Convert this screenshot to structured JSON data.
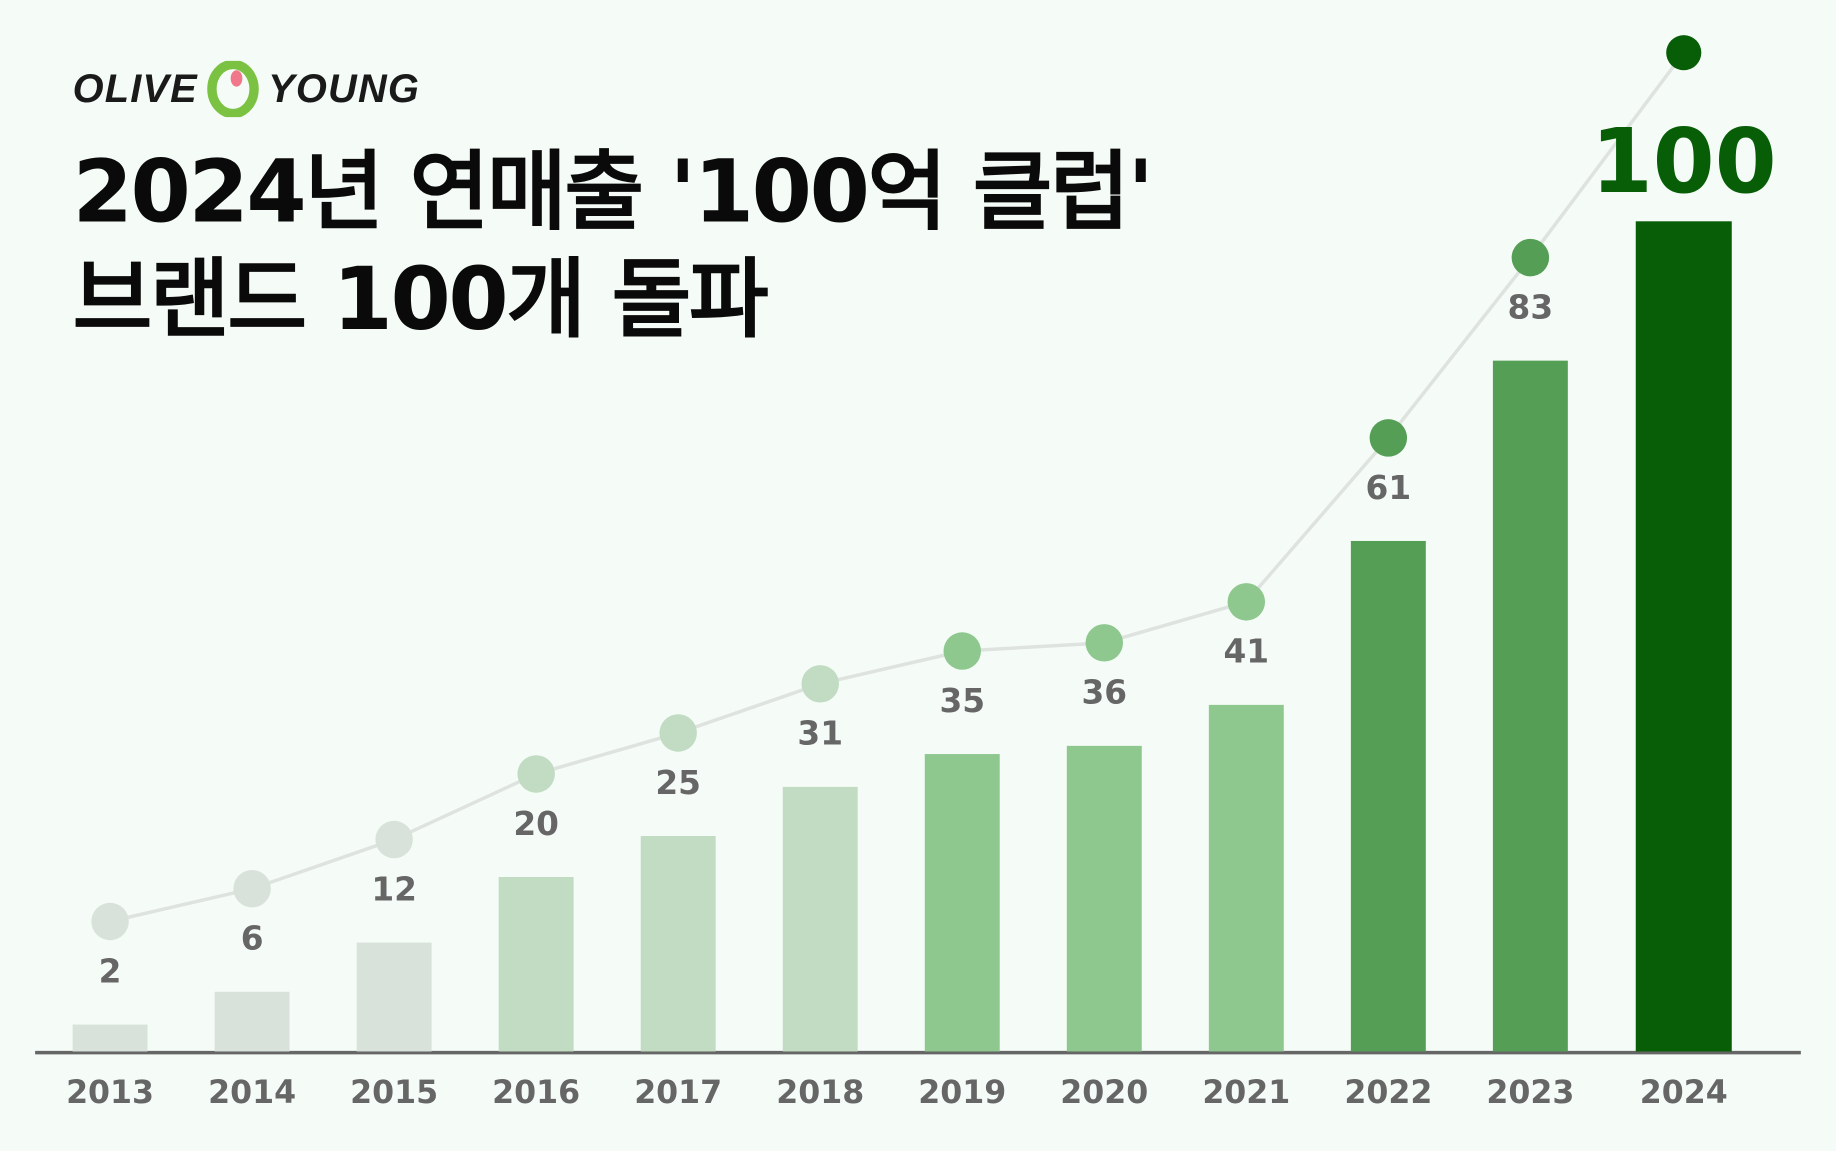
{
  "logo": {
    "text_left": "OLIVE",
    "text_right": "YOUNG",
    "colors": {
      "ring": "#7cc242",
      "dot": "#f0788a"
    }
  },
  "title": {
    "line1": "2024년 연매출 '100억 클럽'",
    "line2": "브랜드 100개 돌파"
  },
  "chart_data": {
    "type": "bar",
    "title": "2024년 연매출 '100억 클럽' 브랜드 100개 돌파",
    "categories": [
      "2013",
      "2014",
      "2015",
      "2016",
      "2017",
      "2018",
      "2019",
      "2020",
      "2021",
      "2022",
      "2023",
      "2024"
    ],
    "values": [
      2,
      6,
      12,
      20,
      25,
      31,
      35,
      36,
      41,
      61,
      83,
      100
    ],
    "overlay": "line connecting dots above bars",
    "colors": [
      "#d8e2da",
      "#d8e2da",
      "#d8e2da",
      "#c1dcc2",
      "#c1dcc2",
      "#c1dcc2",
      "#8ec88e",
      "#8ec88e",
      "#8ec88e",
      "#559e55",
      "#559e55",
      "#075e07"
    ],
    "line_color": "#dfe3df",
    "label_color": "#666666",
    "highlight_label_color": "#075e07",
    "xlabel": "",
    "ylabel": "",
    "ylim": [
      0,
      100
    ],
    "grid": false,
    "legend": "none"
  }
}
